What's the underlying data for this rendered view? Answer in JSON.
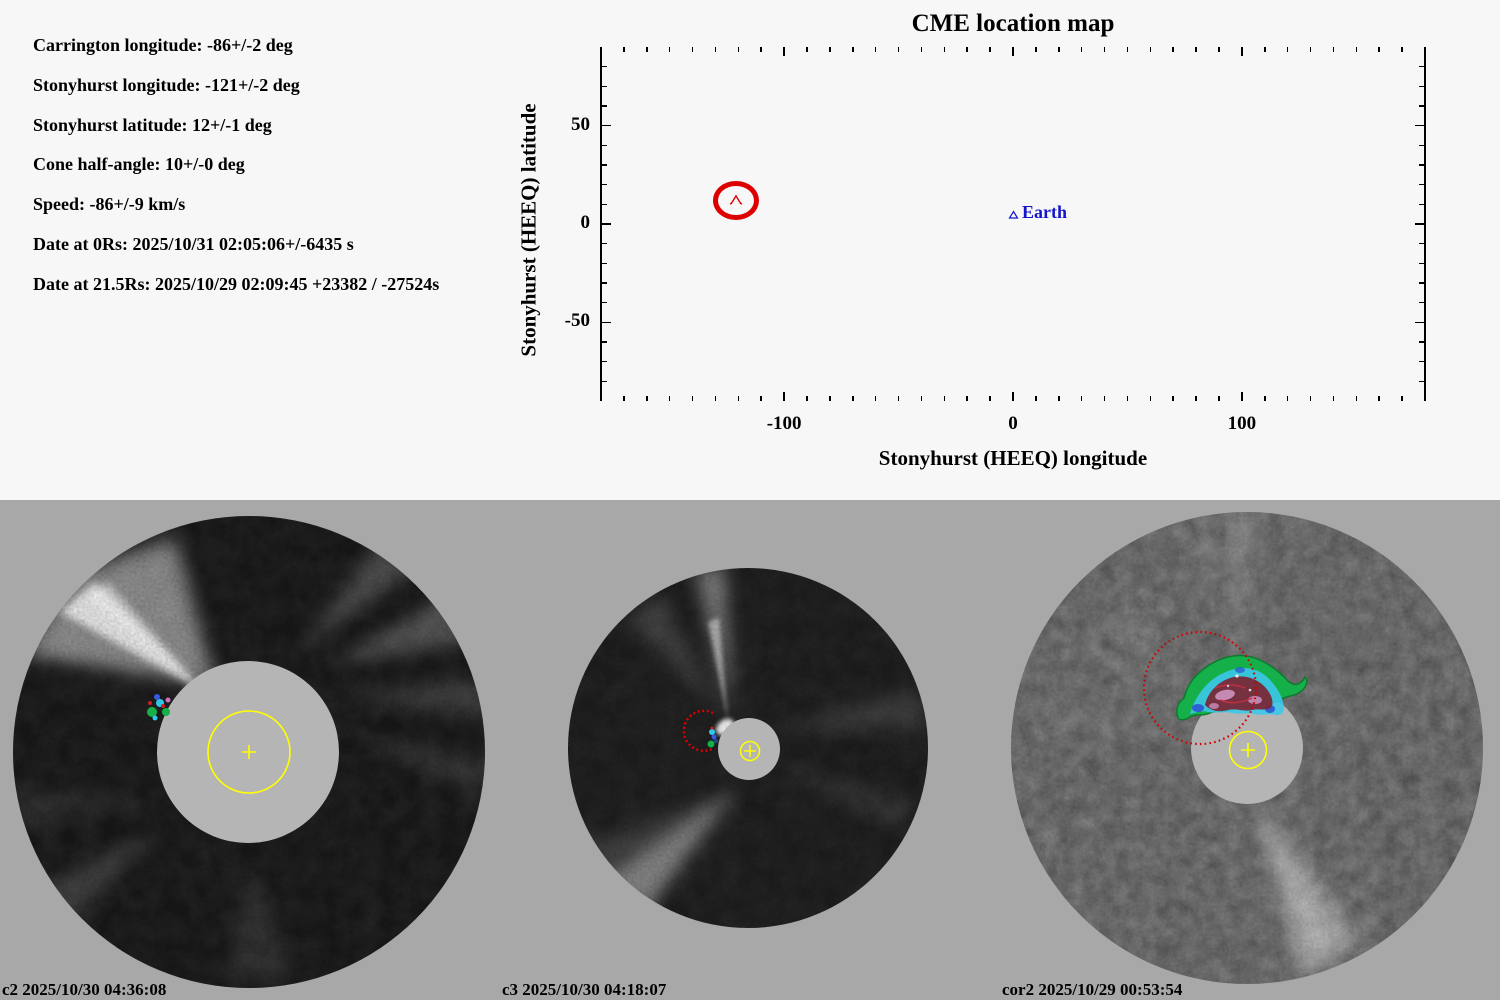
{
  "title": "CME location map",
  "params": [
    "Carrington longitude: -86+/-2 deg",
    "Stonyhurst longitude: -121+/-2 deg",
    "Stonyhurst latitude: 12+/-1 deg",
    "Cone half-angle: 10+/-0 deg",
    "Speed: -86+/-9 km/s",
    "Date at 0Rs: 2025/10/31 02:05:06+/-6435 s",
    "Date at 21.5Rs: 2025/10/29 02:09:45 +23382 / -27524s"
  ],
  "chart_data": {
    "type": "scatter",
    "title": "CME location map",
    "xlabel": "Stonyhurst (HEEQ) longitude",
    "ylabel": "Stonyhurst (HEEQ) latitude",
    "xlim": [
      -180,
      180
    ],
    "ylim": [
      -90,
      90
    ],
    "xticks": [
      -100,
      0,
      100
    ],
    "yticks": [
      -50,
      0,
      50
    ],
    "minor_tick_step_deg": 10,
    "grid": false,
    "legend": "none",
    "points": [
      {
        "name": "cme-cone",
        "lon": -121,
        "lat": 12,
        "radius_deg": 10,
        "marker": "thick-red-circle-outline",
        "color": "#dd0000"
      },
      {
        "name": "earth",
        "lon": 0,
        "lat": 5,
        "marker": "open-blue-triangle",
        "label": "Earth",
        "color": "#1414cc"
      }
    ]
  },
  "coronagraphs": [
    {
      "id": "c2",
      "label": "c2 2025/10/30 04:36:08"
    },
    {
      "id": "c3",
      "label": "c3 2025/10/30 04:18:07"
    },
    {
      "id": "cor2",
      "label": "cor2 2025/10/29 00:53:54"
    }
  ],
  "colors": {
    "top_background": "#f7f7f7",
    "bottom_background": "#a8a8a8",
    "occulter_gray": "#b5b5b5",
    "sun_circle_yellow": "#ffff00",
    "cone_red": "#dd0000",
    "earth_blue": "#1414cc",
    "detection_green": "#16b04a",
    "detection_cyan": "#2ec8e8",
    "detection_blue": "#3858e0",
    "detection_maroon": "#7c2433",
    "detection_pink": "#d49ac8",
    "text": "#000000"
  }
}
